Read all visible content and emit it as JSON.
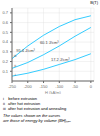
{
  "chart_data": {
    "type": "line",
    "xlabel": "H (kA/m)",
    "ylabel": "B(T)",
    "xlim": [
      -250,
      10
    ],
    "ylim": [
      0,
      0.75
    ],
    "xticks": [
      -250,
      -200,
      -150,
      -100,
      -50,
      0
    ],
    "yticks": [
      0.1,
      0.2,
      0.3,
      0.4,
      0.5,
      0.6,
      0.7
    ],
    "grid": true,
    "x": [
      -250,
      -200,
      -150,
      -100,
      -50,
      0
    ],
    "series": [
      {
        "name": "i",
        "color": "#00bfff",
        "values": [
          0.05,
          0.08,
          0.12,
          0.17,
          0.22,
          0.28
        ]
      },
      {
        "name": "ii",
        "color": "#00bfff",
        "values": [
          0.13,
          0.19,
          0.27,
          0.36,
          0.46,
          0.55
        ]
      },
      {
        "name": "iii",
        "color": "#00bfff",
        "values": [
          0.23,
          0.36,
          0.47,
          0.56,
          0.63,
          0.67
        ]
      }
    ],
    "annotations": [
      {
        "text": "95.4 J/cm³",
        "x": -207,
        "y": 0.285
      },
      {
        "text": "60.1 J/cm³",
        "x": -132,
        "y": 0.365
      },
      {
        "text": "17.2 J/cm³",
        "x": -97,
        "y": 0.195
      }
    ],
    "roman_labels": [
      {
        "text": "i",
        "x": -240,
        "y": 0.068
      },
      {
        "text": "ii",
        "x": -240,
        "y": 0.155
      },
      {
        "text": "iii",
        "x": -240,
        "y": 0.26
      }
    ],
    "legend_items": [
      "i    before extrusion",
      "ii   after hot extrusion",
      "iii  after hot extrusion and annealing"
    ],
    "note_lines": [
      "The values shown on the curves",
      "are those of energy by volume (BH)ₘₐₓ"
    ]
  }
}
